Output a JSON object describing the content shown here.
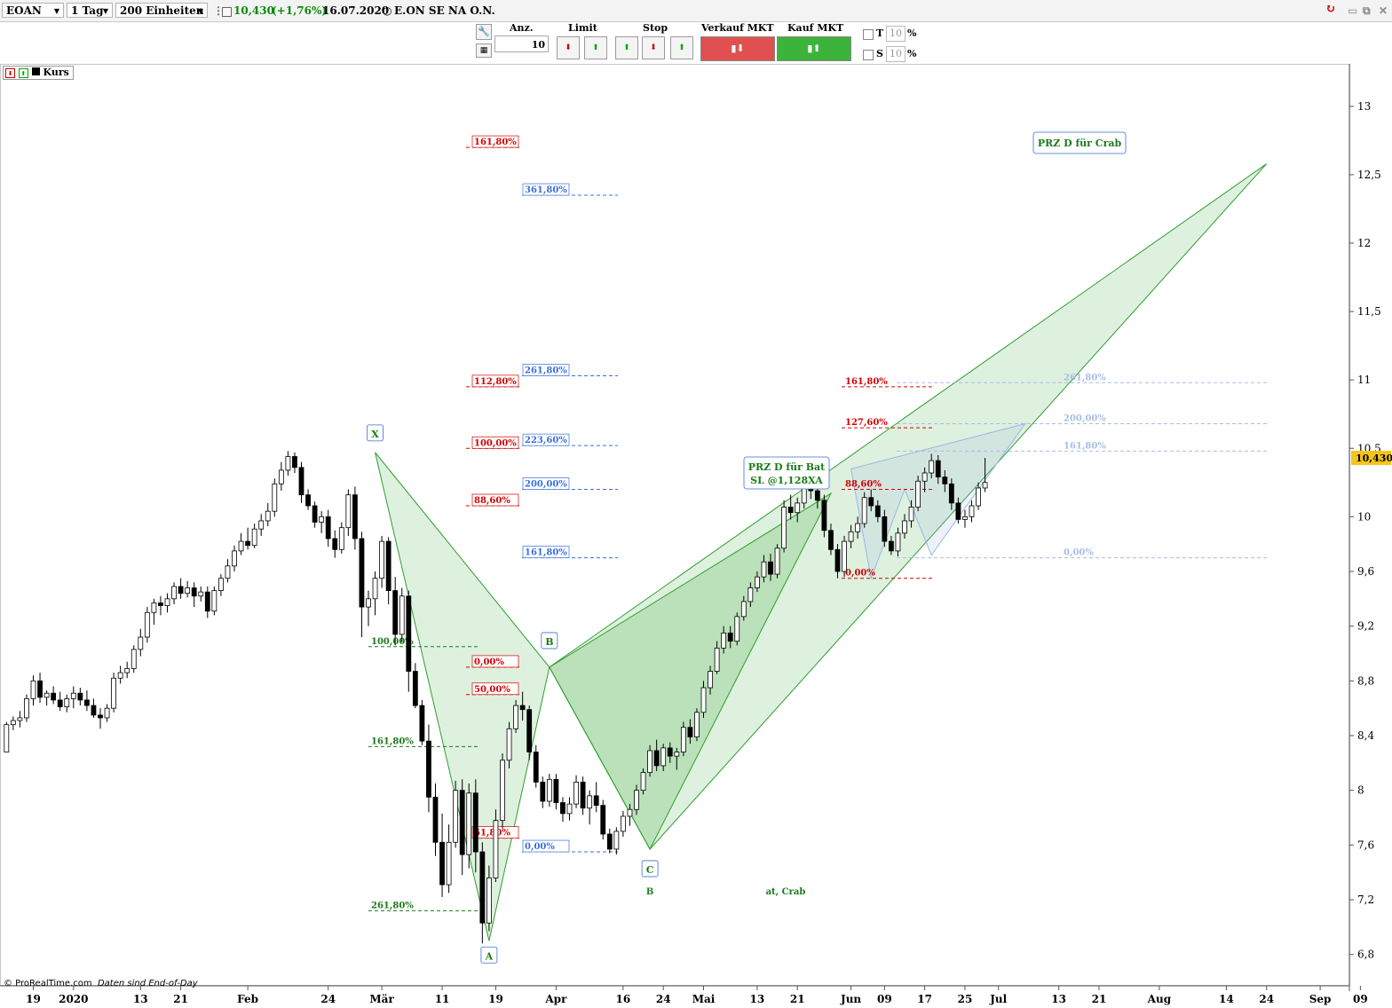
{
  "toolbar": {
    "symbol": "EOAN",
    "interval": "1 Tag",
    "units": "200 Einheiten",
    "price": "10,430",
    "change": "(+1,76%)",
    "date": "16.07.2020",
    "instrument": "E.ON SE NA O.N."
  },
  "order": {
    "qty_label": "Anz.",
    "qty_value": "10",
    "limit_label": "Limit",
    "stop_label": "Stop",
    "sell_label": "Verkauf MKT",
    "buy_label": "Kauf MKT",
    "t_label": "T",
    "t_value": "10",
    "s_label": "S",
    "s_value": "10",
    "pct": "%"
  },
  "legend": {
    "series": "Kurs"
  },
  "credit": {
    "source": "© ProRealTime.com",
    "note": "Daten sind End-of-Day"
  },
  "colors": {
    "up": "#ffffff",
    "down": "#000000",
    "pattern_green": "#2e9e2e",
    "pattern_blue": "#9db6e6",
    "red": "#d40000",
    "blue": "#3a6fd8",
    "sell": "#e05050",
    "buy": "#3cb43c"
  },
  "chart_data": {
    "type": "candlestick",
    "title": "",
    "y_axis": {
      "ticks": [
        "6,8",
        "7,2",
        "7,6",
        "8",
        "8,4",
        "8,8",
        "9,2",
        "9,6",
        "10",
        "10,5",
        "11",
        "11,5",
        "12",
        "12,5",
        "13"
      ],
      "ylim": [
        6.7,
        13.3
      ],
      "last_value": "10,430"
    },
    "x_axis": {
      "tick_labels": [
        "19",
        "2020",
        "13",
        "21",
        "Feb",
        "24",
        "Mär",
        "11",
        "19",
        "Apr",
        "16",
        "24",
        "Mai",
        "13",
        "21",
        "Jun",
        "09",
        "17",
        "25",
        "Jul",
        "13",
        "21",
        "Aug",
        "14",
        "24",
        "Sep",
        "09"
      ],
      "tick_indices": [
        4,
        10,
        20,
        26,
        36,
        48,
        56,
        65,
        73,
        82,
        92,
        98,
        104,
        112,
        118,
        126,
        131,
        137,
        143,
        148,
        157,
        163,
        172,
        182,
        188,
        196,
        202
      ]
    },
    "candles": [
      [
        8.28,
        8.5,
        8.28,
        8.48
      ],
      [
        8.48,
        8.54,
        8.44,
        8.51
      ],
      [
        8.51,
        8.58,
        8.46,
        8.53
      ],
      [
        8.53,
        8.7,
        8.5,
        8.67
      ],
      [
        8.67,
        8.84,
        8.62,
        8.8
      ],
      [
        8.8,
        8.86,
        8.64,
        8.68
      ],
      [
        8.68,
        8.73,
        8.62,
        8.71
      ],
      [
        8.71,
        8.76,
        8.63,
        8.66
      ],
      [
        8.66,
        8.72,
        8.58,
        8.61
      ],
      [
        8.61,
        8.7,
        8.57,
        8.67
      ],
      [
        8.67,
        8.76,
        8.6,
        8.71
      ],
      [
        8.71,
        8.75,
        8.62,
        8.66
      ],
      [
        8.66,
        8.73,
        8.58,
        8.62
      ],
      [
        8.62,
        8.67,
        8.53,
        8.55
      ],
      [
        8.55,
        8.6,
        8.45,
        8.53
      ],
      [
        8.53,
        8.63,
        8.5,
        8.6
      ],
      [
        8.6,
        8.86,
        8.57,
        8.82
      ],
      [
        8.82,
        8.91,
        8.78,
        8.86
      ],
      [
        8.86,
        8.94,
        8.82,
        8.89
      ],
      [
        8.89,
        9.06,
        8.86,
        9.03
      ],
      [
        9.03,
        9.18,
        8.98,
        9.12
      ],
      [
        9.12,
        9.34,
        9.08,
        9.3
      ],
      [
        9.3,
        9.4,
        9.21,
        9.37
      ],
      [
        9.37,
        9.42,
        9.28,
        9.35
      ],
      [
        9.35,
        9.44,
        9.3,
        9.4
      ],
      [
        9.4,
        9.52,
        9.36,
        9.49
      ],
      [
        9.49,
        9.55,
        9.4,
        9.44
      ],
      [
        9.44,
        9.53,
        9.41,
        9.48
      ],
      [
        9.48,
        9.52,
        9.34,
        9.42
      ],
      [
        9.42,
        9.49,
        9.38,
        9.45
      ],
      [
        9.45,
        9.49,
        9.26,
        9.31
      ],
      [
        9.31,
        9.49,
        9.28,
        9.46
      ],
      [
        9.46,
        9.58,
        9.42,
        9.55
      ],
      [
        9.55,
        9.69,
        9.52,
        9.64
      ],
      [
        9.64,
        9.79,
        9.6,
        9.75
      ],
      [
        9.75,
        9.88,
        9.72,
        9.82
      ],
      [
        9.82,
        9.92,
        9.76,
        9.79
      ],
      [
        9.79,
        9.95,
        9.77,
        9.91
      ],
      [
        9.91,
        10.02,
        9.86,
        9.97
      ],
      [
        9.97,
        10.1,
        9.93,
        10.04
      ],
      [
        10.04,
        10.28,
        10.0,
        10.24
      ],
      [
        10.24,
        10.4,
        10.19,
        10.34
      ],
      [
        10.34,
        10.48,
        10.3,
        10.44
      ],
      [
        10.44,
        10.47,
        10.32,
        10.36
      ],
      [
        10.36,
        10.4,
        10.1,
        10.16
      ],
      [
        10.16,
        10.2,
        10.05,
        10.08
      ],
      [
        10.08,
        10.11,
        9.92,
        9.96
      ],
      [
        9.96,
        10.04,
        9.88,
        10.0
      ],
      [
        10.0,
        10.05,
        9.78,
        9.84
      ],
      [
        9.84,
        9.9,
        9.7,
        9.76
      ],
      [
        9.76,
        9.96,
        9.73,
        9.92
      ],
      [
        9.92,
        10.2,
        9.86,
        10.16
      ],
      [
        10.16,
        10.22,
        9.76,
        9.84
      ],
      [
        9.84,
        9.89,
        9.12,
        9.34
      ],
      [
        9.34,
        9.46,
        9.2,
        9.4
      ],
      [
        9.4,
        9.6,
        9.28,
        9.55
      ],
      [
        9.55,
        9.86,
        9.48,
        9.82
      ],
      [
        9.82,
        9.85,
        9.36,
        9.46
      ],
      [
        9.46,
        9.56,
        9.06,
        9.14
      ],
      [
        9.14,
        9.48,
        9.08,
        9.42
      ],
      [
        9.42,
        9.46,
        8.72,
        8.87
      ],
      [
        8.87,
        8.93,
        8.6,
        8.62
      ],
      [
        8.62,
        8.66,
        8.33,
        8.36
      ],
      [
        8.36,
        8.48,
        7.84,
        7.95
      ],
      [
        7.95,
        8.05,
        7.52,
        7.62
      ],
      [
        7.62,
        7.83,
        7.22,
        7.31
      ],
      [
        7.31,
        7.75,
        7.25,
        7.62
      ],
      [
        7.62,
        8.07,
        7.58,
        8.0
      ],
      [
        8.0,
        8.08,
        7.38,
        7.53
      ],
      [
        7.53,
        8.05,
        7.43,
        7.98
      ],
      [
        7.98,
        8.08,
        7.4,
        7.55
      ],
      [
        7.55,
        7.62,
        6.88,
        7.03
      ],
      [
        7.03,
        7.45,
        6.97,
        7.36
      ],
      [
        7.36,
        7.86,
        7.33,
        7.78
      ],
      [
        7.78,
        8.27,
        7.72,
        8.22
      ],
      [
        8.22,
        8.5,
        8.16,
        8.45
      ],
      [
        8.45,
        8.66,
        8.42,
        8.62
      ],
      [
        8.62,
        8.72,
        8.51,
        8.59
      ],
      [
        8.59,
        8.62,
        8.22,
        8.28
      ],
      [
        8.28,
        8.33,
        8.02,
        8.06
      ],
      [
        8.06,
        8.1,
        7.87,
        7.92
      ],
      [
        7.92,
        8.12,
        7.88,
        8.08
      ],
      [
        8.08,
        8.12,
        7.86,
        7.91
      ],
      [
        7.91,
        7.95,
        7.77,
        7.83
      ],
      [
        7.83,
        7.95,
        7.78,
        7.9
      ],
      [
        7.9,
        8.11,
        7.87,
        8.06
      ],
      [
        8.06,
        8.1,
        7.82,
        7.87
      ],
      [
        7.87,
        8.0,
        7.75,
        7.96
      ],
      [
        7.96,
        8.06,
        7.84,
        7.89
      ],
      [
        7.89,
        7.93,
        7.64,
        7.68
      ],
      [
        7.68,
        7.72,
        7.54,
        7.57
      ],
      [
        7.57,
        7.73,
        7.53,
        7.7
      ],
      [
        7.7,
        7.85,
        7.66,
        7.81
      ],
      [
        7.81,
        7.9,
        7.74,
        7.86
      ],
      [
        7.86,
        8.04,
        7.82,
        8.0
      ],
      [
        8.0,
        8.16,
        7.97,
        8.13
      ],
      [
        8.13,
        8.33,
        8.1,
        8.29
      ],
      [
        8.29,
        8.37,
        8.14,
        8.18
      ],
      [
        8.18,
        8.34,
        8.14,
        8.31
      ],
      [
        8.31,
        8.35,
        8.2,
        8.25
      ],
      [
        8.25,
        8.31,
        8.15,
        8.28
      ],
      [
        8.28,
        8.5,
        8.25,
        8.46
      ],
      [
        8.46,
        8.52,
        8.34,
        8.39
      ],
      [
        8.39,
        8.6,
        8.36,
        8.57
      ],
      [
        8.57,
        8.8,
        8.53,
        8.75
      ],
      [
        8.75,
        8.91,
        8.7,
        8.87
      ],
      [
        8.87,
        9.09,
        8.85,
        9.04
      ],
      [
        9.04,
        9.2,
        9.0,
        9.15
      ],
      [
        9.15,
        9.2,
        9.04,
        9.09
      ],
      [
        9.09,
        9.3,
        9.06,
        9.27
      ],
      [
        9.27,
        9.42,
        9.24,
        9.38
      ],
      [
        9.38,
        9.52,
        9.34,
        9.48
      ],
      [
        9.48,
        9.6,
        9.45,
        9.56
      ],
      [
        9.56,
        9.72,
        9.52,
        9.67
      ],
      [
        9.67,
        9.73,
        9.53,
        9.58
      ],
      [
        9.58,
        9.8,
        9.55,
        9.77
      ],
      [
        9.77,
        10.12,
        9.74,
        10.07
      ],
      [
        10.07,
        10.16,
        9.98,
        10.03
      ],
      [
        10.03,
        10.14,
        9.96,
        10.1
      ],
      [
        10.1,
        10.37,
        10.06,
        10.32
      ],
      [
        10.32,
        10.39,
        10.13,
        10.19
      ],
      [
        10.19,
        10.26,
        10.06,
        10.12
      ],
      [
        10.12,
        10.16,
        9.85,
        9.9
      ],
      [
        9.9,
        9.95,
        9.72,
        9.76
      ],
      [
        9.76,
        9.8,
        9.55,
        9.6
      ],
      [
        9.6,
        9.86,
        9.56,
        9.82
      ],
      [
        9.82,
        9.94,
        9.77,
        9.89
      ],
      [
        9.89,
        10.0,
        9.84,
        9.95
      ],
      [
        9.95,
        10.18,
        9.92,
        10.14
      ],
      [
        10.14,
        10.2,
        10.04,
        10.08
      ],
      [
        10.08,
        10.12,
        9.96,
        10.0
      ],
      [
        10.0,
        10.05,
        9.78,
        9.82
      ],
      [
        9.82,
        9.86,
        9.72,
        9.75
      ],
      [
        9.75,
        9.92,
        9.71,
        9.88
      ],
      [
        9.88,
        10.02,
        9.84,
        9.97
      ],
      [
        9.97,
        10.12,
        9.92,
        10.07
      ],
      [
        10.07,
        10.3,
        10.04,
        10.26
      ],
      [
        10.26,
        10.36,
        10.18,
        10.32
      ],
      [
        10.32,
        10.46,
        10.28,
        10.41
      ],
      [
        10.41,
        10.45,
        10.24,
        10.29
      ],
      [
        10.29,
        10.34,
        10.18,
        10.24
      ],
      [
        10.24,
        10.28,
        10.05,
        10.1
      ],
      [
        10.1,
        10.14,
        9.95,
        9.98
      ],
      [
        9.98,
        10.05,
        9.92,
        10.0
      ],
      [
        10.0,
        10.12,
        9.96,
        10.08
      ],
      [
        10.08,
        10.25,
        10.05,
        10.21
      ],
      [
        10.21,
        10.43,
        10.18,
        10.25
      ]
    ],
    "harmonic_patterns": [
      {
        "labels": [
          "X",
          "A",
          "B",
          "C"
        ],
        "vertices": [
          [
            55,
            10.47
          ],
          [
            72,
            6.9
          ],
          [
            81,
            8.9
          ],
          [
            96,
            7.57
          ]
        ],
        "projected_d": {
          "index": 188,
          "value": 12.58
        },
        "d_label": "PRZ D für Crab"
      },
      {
        "vertices": [
          [
            81,
            8.9
          ],
          [
            96,
            7.57
          ],
          [
            123,
            10.17
          ]
        ],
        "d_label_lines": [
          "PRZ D für Bat",
          "SL @1,128XA"
        ]
      }
    ],
    "pattern_caption": "Bat, Crab",
    "fib_green": [
      {
        "label": "100,00%",
        "value": 9.05
      },
      {
        "label": "161,80%",
        "value": 8.32
      },
      {
        "label": "261,80%",
        "value": 7.12
      }
    ],
    "fib_red_left": [
      {
        "label": "161,80%",
        "value": 12.7
      },
      {
        "label": "112,80%",
        "value": 10.95
      },
      {
        "label": "100,00%",
        "value": 10.5
      },
      {
        "label": "88,60%",
        "value": 10.08
      },
      {
        "label": "50,00%",
        "value": 8.7
      },
      {
        "label": "0,00%",
        "value": 8.9
      },
      {
        "label": "61,80%",
        "value": 7.65
      }
    ],
    "fib_blue": [
      {
        "label": "361,80%",
        "value": 12.35
      },
      {
        "label": "261,80%",
        "value": 11.03
      },
      {
        "label": "223,60%",
        "value": 10.52
      },
      {
        "label": "200,00%",
        "value": 10.2
      },
      {
        "label": "161,80%",
        "value": 9.7
      },
      {
        "label": "0,00%",
        "value": 7.55
      }
    ],
    "fib_red_right": [
      {
        "label": "161,80%",
        "value": 10.95
      },
      {
        "label": "127,60%",
        "value": 10.65
      },
      {
        "label": "88,60%",
        "value": 10.2
      },
      {
        "label": "0,00%",
        "value": 9.55
      }
    ],
    "fib_lightblue": [
      {
        "label": "261,80%",
        "value": 10.98
      },
      {
        "label": "200,00%",
        "value": 10.68
      },
      {
        "label": "161,80%",
        "value": 10.48
      },
      {
        "label": "0,00%",
        "value": 9.7
      }
    ],
    "blue_pattern": {
      "vertices": [
        [
          126,
          10.35
        ],
        [
          129,
          9.55
        ],
        [
          134,
          10.2
        ],
        [
          138,
          9.72
        ],
        [
          152,
          10.68
        ]
      ]
    }
  }
}
